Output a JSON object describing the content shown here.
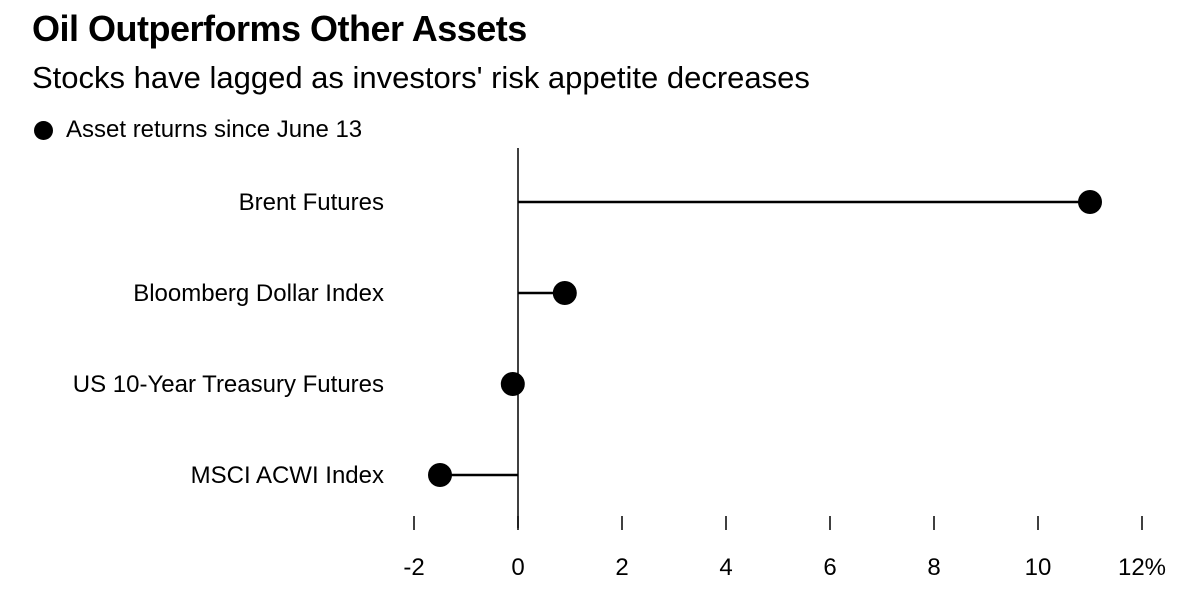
{
  "title": "Oil Outperforms Other Assets",
  "subtitle": "Stocks have lagged as investors' risk appetite decreases",
  "legend": {
    "label": "Asset returns since June 13",
    "marker": "filled-circle"
  },
  "chart_data": {
    "type": "dot-plot",
    "orientation": "horizontal",
    "categories": [
      "Brent Futures",
      "Bloomberg Dollar Index",
      "US 10-Year Treasury Futures",
      "MSCI ACWI Index"
    ],
    "series": [
      {
        "name": "Asset returns since June 13",
        "values": [
          11.0,
          0.9,
          -0.1,
          -1.5
        ]
      }
    ],
    "x_ticks": [
      -2,
      0,
      2,
      4,
      6,
      8,
      10,
      12
    ],
    "x_tick_labels": [
      "-2",
      "0",
      "2",
      "4",
      "6",
      "8",
      "10",
      "12%"
    ],
    "xlim": [
      -2,
      12
    ],
    "unit": "%",
    "grid": false,
    "zero_line": true,
    "colors": {
      "marker": "#000000",
      "line": "#000000"
    }
  }
}
